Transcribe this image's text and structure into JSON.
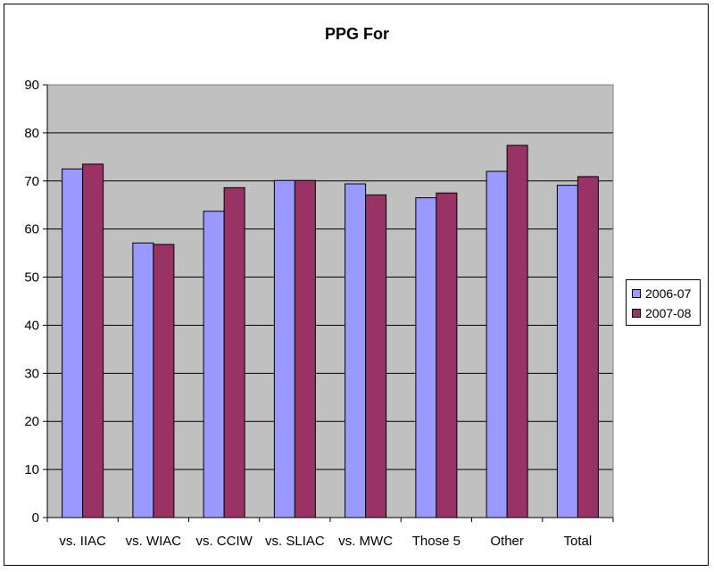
{
  "chart_data": {
    "type": "bar",
    "title": "PPG For",
    "xlabel": "",
    "ylabel": "",
    "ylim": [
      0,
      90
    ],
    "yticks": [
      0,
      10,
      20,
      30,
      40,
      50,
      60,
      70,
      80,
      90
    ],
    "grid": true,
    "legend_position": "right",
    "categories": [
      "vs. IIAC",
      "vs. WIAC",
      "vs. CCIW",
      "vs. SLIAC",
      "vs. MWC",
      "Those 5",
      "Other",
      "Total"
    ],
    "series": [
      {
        "name": "2006-07",
        "color": "#9999ff",
        "values": [
          72.5,
          57.1,
          63.7,
          70.1,
          69.4,
          66.5,
          72.0,
          69.1
        ]
      },
      {
        "name": "2007-08",
        "color": "#993366",
        "values": [
          73.5,
          56.8,
          68.6,
          70.1,
          67.1,
          67.5,
          77.4,
          70.9
        ]
      }
    ],
    "plot_background": "#c0c0c0"
  }
}
